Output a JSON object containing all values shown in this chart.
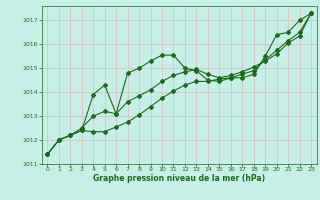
{
  "x": [
    0,
    1,
    2,
    3,
    4,
    5,
    6,
    7,
    8,
    9,
    10,
    11,
    12,
    13,
    14,
    15,
    16,
    17,
    18,
    19,
    20,
    21,
    22,
    23
  ],
  "series1": [
    1011.4,
    1012.0,
    1012.2,
    1012.4,
    1013.9,
    1014.3,
    1013.1,
    1014.8,
    1015.0,
    1015.3,
    1015.55,
    1015.55,
    1015.0,
    1014.9,
    1014.5,
    1014.45,
    1014.6,
    1014.6,
    1014.75,
    1015.5,
    1016.4,
    1016.5,
    1017.0,
    1017.3
  ],
  "series2": [
    1011.4,
    1012.0,
    1012.2,
    1012.4,
    1012.35,
    1012.35,
    1012.55,
    1012.75,
    1013.05,
    1013.4,
    1013.75,
    1014.05,
    1014.3,
    1014.45,
    1014.45,
    1014.55,
    1014.6,
    1014.75,
    1014.9,
    1015.35,
    1015.75,
    1016.15,
    1016.5,
    1017.3
  ],
  "series3": [
    1011.4,
    1012.0,
    1012.2,
    1012.5,
    1013.0,
    1013.2,
    1013.1,
    1013.6,
    1013.85,
    1014.1,
    1014.45,
    1014.7,
    1014.85,
    1014.95,
    1014.75,
    1014.6,
    1014.7,
    1014.85,
    1015.05,
    1015.3,
    1015.6,
    1016.05,
    1016.35,
    1017.3
  ],
  "line_color": "#1a6b1a",
  "bg_color": "#c8eee8",
  "grid_color": "#ddbbbb",
  "text_color": "#1a6b1a",
  "xlabel": "Graphe pression niveau de la mer (hPa)",
  "ylim": [
    1011.0,
    1017.6
  ],
  "yticks": [
    1011,
    1012,
    1013,
    1014,
    1015,
    1016,
    1017
  ],
  "xlim": [
    -0.5,
    23.5
  ],
  "xticks": [
    0,
    1,
    2,
    3,
    4,
    5,
    6,
    7,
    8,
    9,
    10,
    11,
    12,
    13,
    14,
    15,
    16,
    17,
    18,
    19,
    20,
    21,
    22,
    23
  ]
}
